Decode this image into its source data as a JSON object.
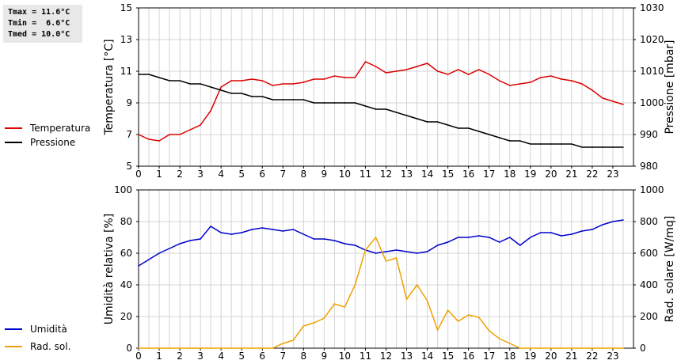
{
  "stats": {
    "tmax": "Tmax = 11.6°C",
    "tmin": "Tmin =  6.6°C",
    "tmed": "Tmed = 10.0°C"
  },
  "chart_data": [
    {
      "type": "line",
      "name": "temperature-pressure",
      "x_ticks": [
        "0",
        "1",
        "2",
        "3",
        "4",
        "5",
        "6",
        "7",
        "8",
        "9",
        "10",
        "11",
        "12",
        "13",
        "14",
        "15",
        "16",
        "17",
        "18",
        "19",
        "20",
        "21",
        "22",
        "23"
      ],
      "xlim": [
        0,
        24
      ],
      "ylabel": "Temperatura [°C]",
      "ylabel_right": "Pressione [mbar]",
      "ylim": [
        5,
        15
      ],
      "y_ticks": [
        "5",
        "7",
        "9",
        "11",
        "13",
        "15"
      ],
      "ylim_right": [
        980,
        1030
      ],
      "y_ticks_right": [
        "980",
        "990",
        "1000",
        "1010",
        "1020",
        "1030"
      ],
      "grid": true,
      "legend_position": "left",
      "series": [
        {
          "name": "Temperatura",
          "axis": "left",
          "color": "#dd0000",
          "x": [
            0,
            0.5,
            1,
            1.5,
            2,
            2.5,
            3,
            3.5,
            4,
            4.5,
            5,
            5.5,
            6,
            6.5,
            7,
            7.5,
            8,
            8.5,
            9,
            9.5,
            10,
            10.5,
            11,
            11.5,
            12,
            12.5,
            13,
            13.5,
            14,
            14.5,
            15,
            15.5,
            16,
            16.5,
            17,
            17.5,
            18,
            18.5,
            19,
            19.5,
            20,
            20.5,
            21,
            21.5,
            22,
            22.5,
            23,
            23.5
          ],
          "values": [
            7.0,
            6.7,
            6.6,
            7.0,
            7.0,
            7.3,
            7.6,
            8.5,
            10.0,
            10.4,
            10.4,
            10.5,
            10.4,
            10.1,
            10.2,
            10.2,
            10.3,
            10.5,
            10.5,
            10.7,
            10.6,
            10.6,
            11.6,
            11.3,
            10.9,
            11.0,
            11.1,
            11.3,
            11.5,
            11.0,
            10.8,
            11.1,
            10.8,
            11.1,
            10.8,
            10.4,
            10.1,
            10.2,
            10.3,
            10.6,
            10.7,
            10.5,
            10.4,
            10.2,
            9.8,
            9.3,
            9.1,
            8.9
          ]
        },
        {
          "name": "Pressione",
          "axis": "right",
          "color": "#000000",
          "x": [
            0,
            0.5,
            1,
            1.5,
            2,
            2.5,
            3,
            3.5,
            4,
            4.5,
            5,
            5.5,
            6,
            6.5,
            7,
            7.5,
            8,
            8.5,
            9,
            9.5,
            10,
            10.5,
            11,
            11.5,
            12,
            12.5,
            13,
            13.5,
            14,
            14.5,
            15,
            15.5,
            16,
            16.5,
            17,
            17.5,
            18,
            18.5,
            19,
            19.5,
            20,
            20.5,
            21,
            21.5,
            22,
            22.5,
            23,
            23.5
          ],
          "values": [
            1009,
            1009,
            1008,
            1007,
            1007,
            1006,
            1006,
            1005,
            1004,
            1003,
            1003,
            1002,
            1002,
            1001,
            1001,
            1001,
            1001,
            1000,
            1000,
            1000,
            1000,
            1000,
            999,
            998,
            998,
            997,
            996,
            995,
            994,
            994,
            993,
            992,
            992,
            991,
            990,
            989,
            988,
            988,
            987,
            987,
            987,
            987,
            987,
            986,
            986,
            986,
            986,
            986
          ]
        }
      ]
    },
    {
      "type": "line",
      "name": "humidity-radiation",
      "x_ticks": [
        "0",
        "1",
        "2",
        "3",
        "4",
        "5",
        "6",
        "7",
        "8",
        "9",
        "10",
        "11",
        "12",
        "13",
        "14",
        "15",
        "16",
        "17",
        "18",
        "19",
        "20",
        "21",
        "22",
        "23"
      ],
      "xlim": [
        0,
        24
      ],
      "ylabel": "Umidità relativa [%]",
      "ylabel_right": "Rad. solare [W/mq]",
      "ylim": [
        0,
        100
      ],
      "y_ticks": [
        "0",
        "20",
        "40",
        "60",
        "80",
        "100"
      ],
      "ylim_right": [
        0,
        1000
      ],
      "y_ticks_right": [
        "0",
        "200",
        "400",
        "600",
        "800",
        "1000"
      ],
      "grid": true,
      "legend_position": "left",
      "series": [
        {
          "name": "Umidità",
          "axis": "left",
          "color": "#0000cc",
          "x": [
            0,
            0.5,
            1,
            1.5,
            2,
            2.5,
            3,
            3.5,
            4,
            4.5,
            5,
            5.5,
            6,
            6.5,
            7,
            7.5,
            8,
            8.5,
            9,
            9.5,
            10,
            10.5,
            11,
            11.5,
            12,
            12.5,
            13,
            13.5,
            14,
            14.5,
            15,
            15.5,
            16,
            16.5,
            17,
            17.5,
            18,
            18.5,
            19,
            19.5,
            20,
            20.5,
            21,
            21.5,
            22,
            22.5,
            23,
            23.5
          ],
          "values": [
            52,
            56,
            60,
            63,
            66,
            68,
            69,
            77,
            73,
            72,
            73,
            75,
            76,
            75,
            74,
            75,
            72,
            69,
            69,
            68,
            66,
            65,
            62,
            60,
            61,
            62,
            61,
            60,
            61,
            65,
            67,
            70,
            70,
            71,
            70,
            67,
            70,
            65,
            70,
            73,
            73,
            71,
            72,
            74,
            75,
            78,
            80,
            81
          ]
        },
        {
          "name": "Rad. sol.",
          "axis": "right",
          "color": "#f0a000",
          "x": [
            0,
            0.5,
            1,
            1.5,
            2,
            2.5,
            3,
            3.5,
            4,
            4.5,
            5,
            5.5,
            6,
            6.5,
            7,
            7.5,
            8,
            8.5,
            9,
            9.5,
            10,
            10.5,
            11,
            11.5,
            12,
            12.5,
            13,
            13.5,
            14,
            14.5,
            15,
            15.5,
            16,
            16.5,
            17,
            17.5,
            18,
            18.5,
            19,
            19.5,
            20,
            20.5,
            21,
            21.5,
            22,
            22.5,
            23,
            23.5
          ],
          "values": [
            0,
            0,
            0,
            0,
            0,
            0,
            0,
            0,
            0,
            0,
            0,
            0,
            0,
            0,
            30,
            50,
            140,
            160,
            190,
            280,
            260,
            400,
            620,
            700,
            550,
            570,
            310,
            400,
            300,
            115,
            240,
            170,
            210,
            195,
            110,
            60,
            30,
            0,
            0,
            0,
            0,
            0,
            0,
            0,
            0,
            0,
            0,
            0
          ]
        }
      ]
    }
  ]
}
